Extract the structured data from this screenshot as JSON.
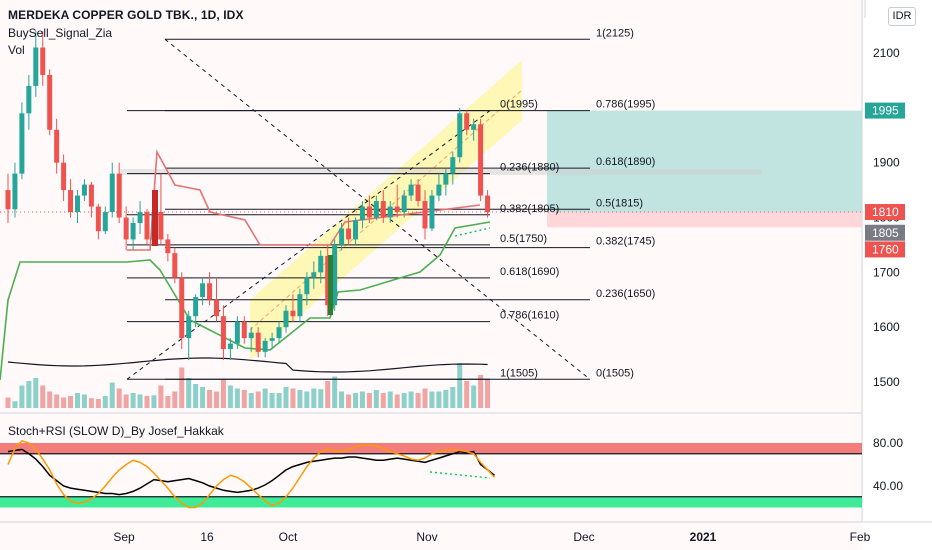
{
  "header": {
    "symbol_title": "MERDEKA COPPER GOLD TBK., 1D, IDX",
    "indicator_1": "BuySell_Signal_Zia",
    "indicator_2": "Vol"
  },
  "currency_badge": "IDR",
  "oscillator_title": "Stoch+RSI (SLOW D)_By Josef_Hakkak",
  "colors": {
    "up": "#26a69a",
    "down": "#ef5350",
    "channel": "#fff59d",
    "take_profit_zone": "#b2dfdb",
    "stop_loss_zone": "#ffcdd2",
    "stop_line": "#e57373",
    "trail_line": "#4caf50",
    "osc_black": "#000000",
    "osc_orange": "#ff9800",
    "osc_upper_band": "#ef5350",
    "osc_lower_band": "#00e676"
  },
  "chart_data": [
    {
      "type": "candlestick",
      "title": "MERDEKA COPPER GOLD TBK., 1D, IDX",
      "y_axis": {
        "min": 1460,
        "max": 2200,
        "ticks": [
          1500,
          1600,
          1700,
          1800,
          1900,
          2000,
          2100
        ],
        "side": "right"
      },
      "x_axis": {
        "labels": [
          "Sep",
          "16",
          "Oct",
          "Nov",
          "Dec",
          "2021",
          "Feb"
        ]
      },
      "price_labels": [
        {
          "text": "1995",
          "value": 1995,
          "color": "#26a69a"
        },
        {
          "text": "1810",
          "value": 1810,
          "color": "#ef5350"
        },
        {
          "text": "1805",
          "value": 1805,
          "color": "#787b86"
        },
        {
          "text": "1760",
          "value": 1760,
          "color": "#ef5350"
        }
      ],
      "candles": [
        {
          "o": 1850,
          "h": 1880,
          "l": 1790,
          "c": 1815
        },
        {
          "o": 1815,
          "h": 1900,
          "l": 1800,
          "c": 1880
        },
        {
          "o": 1880,
          "h": 2010,
          "l": 1870,
          "c": 1990
        },
        {
          "o": 1990,
          "h": 2060,
          "l": 1960,
          "c": 2040
        },
        {
          "o": 2040,
          "h": 2140,
          "l": 2020,
          "c": 2110
        },
        {
          "o": 2110,
          "h": 2140,
          "l": 2040,
          "c": 2060
        },
        {
          "o": 2060,
          "h": 2070,
          "l": 1950,
          "c": 1960
        },
        {
          "o": 1960,
          "h": 1980,
          "l": 1880,
          "c": 1900
        },
        {
          "o": 1900,
          "h": 1915,
          "l": 1830,
          "c": 1850
        },
        {
          "o": 1850,
          "h": 1870,
          "l": 1800,
          "c": 1810
        },
        {
          "o": 1810,
          "h": 1850,
          "l": 1790,
          "c": 1840
        },
        {
          "o": 1840,
          "h": 1870,
          "l": 1830,
          "c": 1860
        },
        {
          "o": 1860,
          "h": 1865,
          "l": 1800,
          "c": 1820
        },
        {
          "o": 1820,
          "h": 1825,
          "l": 1760,
          "c": 1775
        },
        {
          "o": 1775,
          "h": 1820,
          "l": 1770,
          "c": 1810
        },
        {
          "o": 1810,
          "h": 1900,
          "l": 1800,
          "c": 1880
        },
        {
          "o": 1880,
          "h": 1900,
          "l": 1790,
          "c": 1800
        },
        {
          "o": 1800,
          "h": 1820,
          "l": 1740,
          "c": 1760
        },
        {
          "o": 1760,
          "h": 1800,
          "l": 1740,
          "c": 1790
        },
        {
          "o": 1790,
          "h": 1830,
          "l": 1770,
          "c": 1810
        },
        {
          "o": 1810,
          "h": 1815,
          "l": 1750,
          "c": 1760
        },
        {
          "o": 1760,
          "h": 1815,
          "l": 1750,
          "c": 1810
        },
        {
          "o": 1810,
          "h": 1880,
          "l": 1750,
          "c": 1760
        },
        {
          "o": 1760,
          "h": 1770,
          "l": 1720,
          "c": 1735
        },
        {
          "o": 1735,
          "h": 1745,
          "l": 1680,
          "c": 1690
        },
        {
          "o": 1690,
          "h": 1700,
          "l": 1560,
          "c": 1580
        },
        {
          "o": 1580,
          "h": 1630,
          "l": 1540,
          "c": 1620
        },
        {
          "o": 1620,
          "h": 1660,
          "l": 1600,
          "c": 1655
        },
        {
          "o": 1655,
          "h": 1690,
          "l": 1640,
          "c": 1680
        },
        {
          "o": 1680,
          "h": 1700,
          "l": 1640,
          "c": 1650
        },
        {
          "o": 1650,
          "h": 1690,
          "l": 1610,
          "c": 1620
        },
        {
          "o": 1620,
          "h": 1640,
          "l": 1540,
          "c": 1560
        },
        {
          "o": 1560,
          "h": 1580,
          "l": 1540,
          "c": 1570
        },
        {
          "o": 1570,
          "h": 1620,
          "l": 1560,
          "c": 1610
        },
        {
          "o": 1610,
          "h": 1620,
          "l": 1570,
          "c": 1580
        },
        {
          "o": 1580,
          "h": 1600,
          "l": 1555,
          "c": 1590
        },
        {
          "o": 1590,
          "h": 1600,
          "l": 1545,
          "c": 1555
        },
        {
          "o": 1555,
          "h": 1580,
          "l": 1545,
          "c": 1575
        },
        {
          "o": 1575,
          "h": 1590,
          "l": 1560,
          "c": 1580
        },
        {
          "o": 1580,
          "h": 1610,
          "l": 1570,
          "c": 1600
        },
        {
          "o": 1600,
          "h": 1640,
          "l": 1590,
          "c": 1630
        },
        {
          "o": 1630,
          "h": 1660,
          "l": 1610,
          "c": 1620
        },
        {
          "o": 1620,
          "h": 1670,
          "l": 1610,
          "c": 1660
        },
        {
          "o": 1660,
          "h": 1700,
          "l": 1640,
          "c": 1690
        },
        {
          "o": 1690,
          "h": 1720,
          "l": 1670,
          "c": 1700
        },
        {
          "o": 1700,
          "h": 1740,
          "l": 1680,
          "c": 1730
        },
        {
          "o": 1730,
          "h": 1750,
          "l": 1620,
          "c": 1640
        },
        {
          "o": 1640,
          "h": 1760,
          "l": 1630,
          "c": 1750
        },
        {
          "o": 1750,
          "h": 1790,
          "l": 1740,
          "c": 1780
        },
        {
          "o": 1780,
          "h": 1800,
          "l": 1750,
          "c": 1760
        },
        {
          "o": 1760,
          "h": 1800,
          "l": 1750,
          "c": 1795
        },
        {
          "o": 1795,
          "h": 1830,
          "l": 1780,
          "c": 1820
        },
        {
          "o": 1820,
          "h": 1840,
          "l": 1790,
          "c": 1800
        },
        {
          "o": 1800,
          "h": 1840,
          "l": 1795,
          "c": 1830
        },
        {
          "o": 1830,
          "h": 1850,
          "l": 1790,
          "c": 1800
        },
        {
          "o": 1800,
          "h": 1830,
          "l": 1790,
          "c": 1820
        },
        {
          "o": 1820,
          "h": 1860,
          "l": 1800,
          "c": 1810
        },
        {
          "o": 1810,
          "h": 1850,
          "l": 1800,
          "c": 1840
        },
        {
          "o": 1840,
          "h": 1870,
          "l": 1830,
          "c": 1860
        },
        {
          "o": 1860,
          "h": 1870,
          "l": 1820,
          "c": 1830
        },
        {
          "o": 1830,
          "h": 1850,
          "l": 1760,
          "c": 1780
        },
        {
          "o": 1780,
          "h": 1850,
          "l": 1775,
          "c": 1840
        },
        {
          "o": 1840,
          "h": 1880,
          "l": 1830,
          "c": 1860
        },
        {
          "o": 1860,
          "h": 1890,
          "l": 1840,
          "c": 1880
        },
        {
          "o": 1880,
          "h": 1920,
          "l": 1860,
          "c": 1910
        },
        {
          "o": 1910,
          "h": 2000,
          "l": 1900,
          "c": 1990
        },
        {
          "o": 1990,
          "h": 1995,
          "l": 1950,
          "c": 1960
        },
        {
          "o": 1960,
          "h": 1980,
          "l": 1940,
          "c": 1970
        },
        {
          "o": 1970,
          "h": 1980,
          "l": 1830,
          "c": 1840
        },
        {
          "o": 1840,
          "h": 1850,
          "l": 1800,
          "c": 1810
        }
      ],
      "fib_retracements": [
        {
          "anchor": "left",
          "labels": [
            {
              "text": "1(2125)",
              "value": 2125
            },
            {
              "text": "0.786(1995)",
              "value": 1995
            },
            {
              "text": "0.618(1890)",
              "value": 1890
            },
            {
              "text": "0.5(1815)",
              "value": 1815
            },
            {
              "text": "0.382(1745)",
              "value": 1745
            },
            {
              "text": "0.236(1650)",
              "value": 1650
            },
            {
              "text": "0(1505)",
              "value": 1505
            }
          ]
        },
        {
          "anchor": "right",
          "labels": [
            {
              "text": "0(1995)",
              "value": 1995
            },
            {
              "text": "0.236(1880)",
              "value": 1880
            },
            {
              "text": "0.382(1805)",
              "value": 1805
            },
            {
              "text": "0.5(1750)",
              "value": 1750
            },
            {
              "text": "0.618(1690)",
              "value": 1690
            },
            {
              "text": "0.786(1610)",
              "value": 1610
            },
            {
              "text": "1(1505)",
              "value": 1505
            }
          ]
        }
      ],
      "position_tool": {
        "target": 1995,
        "entry": 1810,
        "stop": 1760
      }
    },
    {
      "type": "line",
      "title": "Stoch+RSI (SLOW D)_By Josef_Hakkak",
      "y_axis": {
        "ticks": [
          40,
          80
        ],
        "tick_labels": [
          "40.00",
          "80.00"
        ]
      },
      "bands": {
        "upper": [
          70,
          80
        ],
        "lower": [
          20,
          30
        ]
      },
      "series": [
        {
          "values": [
            72,
            73,
            74,
            70,
            65,
            58,
            50,
            45,
            40,
            38,
            37,
            36,
            35,
            34,
            33,
            33,
            32,
            33,
            35,
            38,
            42,
            46,
            45,
            44,
            45,
            46,
            47,
            45,
            43,
            40,
            38,
            36,
            35,
            34,
            35,
            36,
            38,
            41,
            45,
            50,
            55,
            58,
            60,
            62,
            63,
            64,
            65,
            66,
            66,
            67,
            67,
            66,
            65,
            64,
            64,
            65,
            66,
            65,
            64,
            63,
            62,
            64,
            66,
            68,
            70,
            72,
            71,
            72,
            60,
            55,
            50
          ]
        },
        {
          "values": [
            60,
            75,
            82,
            80,
            74,
            65,
            55,
            42,
            32,
            26,
            24,
            25,
            28,
            33,
            40,
            48,
            55,
            60,
            64,
            62,
            58,
            52,
            45,
            38,
            30,
            24,
            20,
            20,
            24,
            32,
            40,
            46,
            50,
            48,
            44,
            38,
            32,
            26,
            22,
            24,
            30,
            38,
            48,
            58,
            66,
            72,
            74,
            73,
            72,
            74,
            76,
            78,
            78,
            77,
            75,
            72,
            70,
            68,
            65,
            64,
            66,
            70,
            72,
            73,
            74,
            73,
            72,
            70,
            62,
            55,
            48
          ]
        }
      ]
    }
  ]
}
